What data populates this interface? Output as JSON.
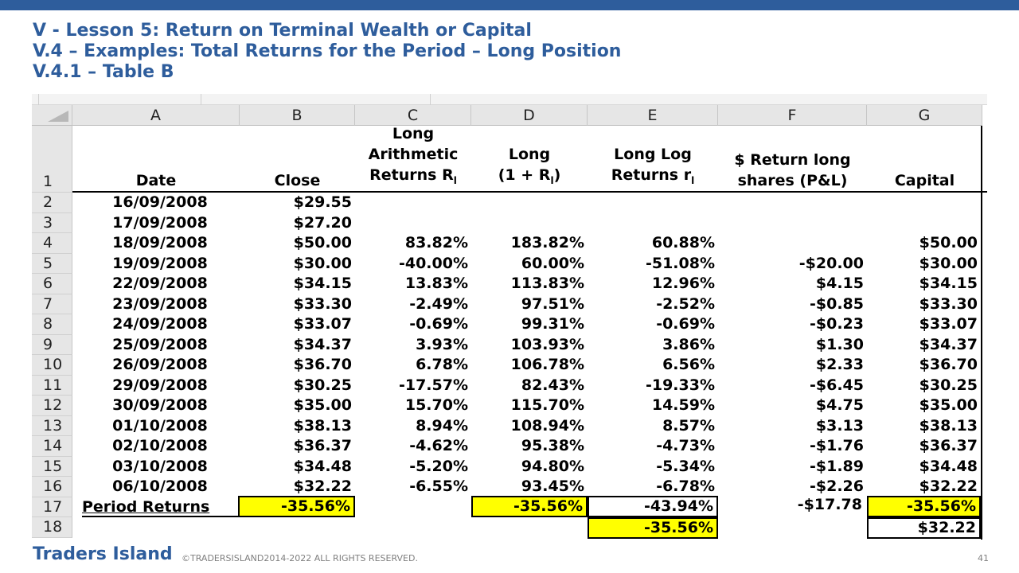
{
  "titles": [
    "V -  Lesson 5: Return on Terminal Wealth or Capital",
    "V.4 – Examples: Total Returns for the Period – Long Position",
    "V.4.1 – Table B"
  ],
  "columns": [
    "A",
    "B",
    "C",
    "D",
    "E",
    "F",
    "G"
  ],
  "row_numbers": [
    "1",
    "2",
    "3",
    "4",
    "5",
    "6",
    "7",
    "8",
    "9",
    "10",
    "11",
    "12",
    "13",
    "14",
    "15",
    "16",
    "17",
    "18"
  ],
  "headers": {
    "date": "Date",
    "close": "Close",
    "arith_l1": "Long",
    "arith_l2": "Arithmetic",
    "arith_l3": "Returns R",
    "arith_sub": "l",
    "long_l1": "Long",
    "long_l2a": "(1 + R",
    "long_sub": "l",
    "long_l2b": ")",
    "log_l1": "Long Log",
    "log_l2": "Returns r",
    "log_sub": "l",
    "pl_l1": "$ Return long",
    "pl_l2": "shares (P&L)",
    "capital": "Capital"
  },
  "rows": [
    {
      "date": "16/09/2008",
      "close": "$29.55",
      "arith": "",
      "long": "",
      "log": "",
      "pl": "",
      "capital": ""
    },
    {
      "date": "17/09/2008",
      "close": "$27.20",
      "arith": "",
      "long": "",
      "log": "",
      "pl": "",
      "capital": ""
    },
    {
      "date": "18/09/2008",
      "close": "$50.00",
      "arith": "83.82%",
      "long": "183.82%",
      "log": "60.88%",
      "pl": "",
      "capital": "$50.00"
    },
    {
      "date": "19/09/2008",
      "close": "$30.00",
      "arith": "-40.00%",
      "long": "60.00%",
      "log": "-51.08%",
      "pl": "-$20.00",
      "capital": "$30.00"
    },
    {
      "date": "22/09/2008",
      "close": "$34.15",
      "arith": "13.83%",
      "long": "113.83%",
      "log": "12.96%",
      "pl": "$4.15",
      "capital": "$34.15"
    },
    {
      "date": "23/09/2008",
      "close": "$33.30",
      "arith": "-2.49%",
      "long": "97.51%",
      "log": "-2.52%",
      "pl": "-$0.85",
      "capital": "$33.30"
    },
    {
      "date": "24/09/2008",
      "close": "$33.07",
      "arith": "-0.69%",
      "long": "99.31%",
      "log": "-0.69%",
      "pl": "-$0.23",
      "capital": "$33.07"
    },
    {
      "date": "25/09/2008",
      "close": "$34.37",
      "arith": "3.93%",
      "long": "103.93%",
      "log": "3.86%",
      "pl": "$1.30",
      "capital": "$34.37"
    },
    {
      "date": "26/09/2008",
      "close": "$36.70",
      "arith": "6.78%",
      "long": "106.78%",
      "log": "6.56%",
      "pl": "$2.33",
      "capital": "$36.70"
    },
    {
      "date": "29/09/2008",
      "close": "$30.25",
      "arith": "-17.57%",
      "long": "82.43%",
      "log": "-19.33%",
      "pl": "-$6.45",
      "capital": "$30.25"
    },
    {
      "date": "30/09/2008",
      "close": "$35.00",
      "arith": "15.70%",
      "long": "115.70%",
      "log": "14.59%",
      "pl": "$4.75",
      "capital": "$35.00"
    },
    {
      "date": "01/10/2008",
      "close": "$38.13",
      "arith": "8.94%",
      "long": "108.94%",
      "log": "8.57%",
      "pl": "$3.13",
      "capital": "$38.13"
    },
    {
      "date": "02/10/2008",
      "close": "$36.37",
      "arith": "-4.62%",
      "long": "95.38%",
      "log": "-4.73%",
      "pl": "-$1.76",
      "capital": "$36.37"
    },
    {
      "date": "03/10/2008",
      "close": "$34.48",
      "arith": "-5.20%",
      "long": "94.80%",
      "log": "-5.34%",
      "pl": "-$1.89",
      "capital": "$34.48"
    },
    {
      "date": "06/10/2008",
      "close": "$32.22",
      "arith": "-6.55%",
      "long": "93.45%",
      "log": "-6.78%",
      "pl": "-$2.26",
      "capital": "$32.22"
    }
  ],
  "period_row": {
    "label": "Period Returns",
    "close": "-35.56%",
    "long": "-35.56%",
    "log": "-43.94%",
    "pl": "-$17.78",
    "capital": "-35.56%"
  },
  "last_row": {
    "log": "-35.56%",
    "capital": "$32.22"
  },
  "footer": {
    "brand": "Traders Island",
    "copyright": "©TRADERSISLAND2014-2022 ALL RIGHTS RESERVED.",
    "page": "41"
  },
  "colors": {
    "brand": "#2e5d9c",
    "highlight": "#ffff00"
  }
}
